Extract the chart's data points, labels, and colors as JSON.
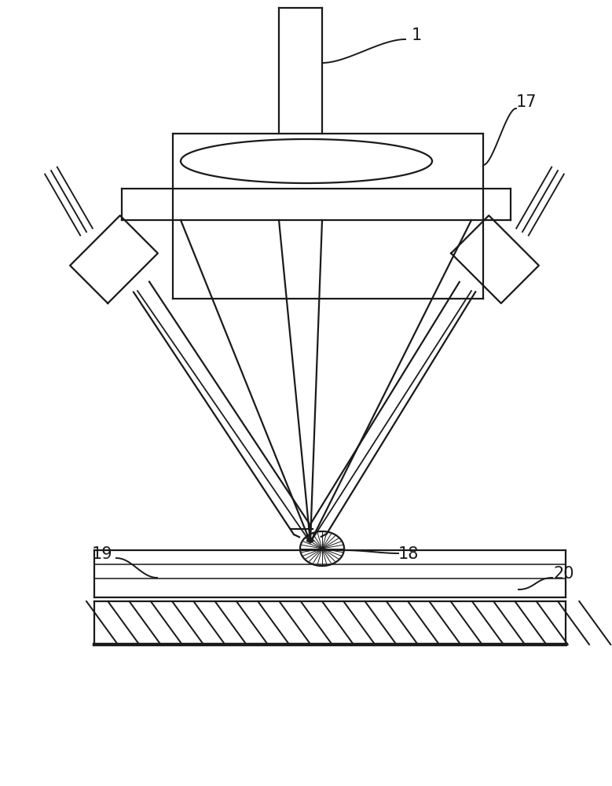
{
  "bg_color": "#ffffff",
  "line_color": "#1a1a1a",
  "line_width": 1.6,
  "fig_width": 7.79,
  "fig_height": 10.0,
  "label_fontsize": 15
}
